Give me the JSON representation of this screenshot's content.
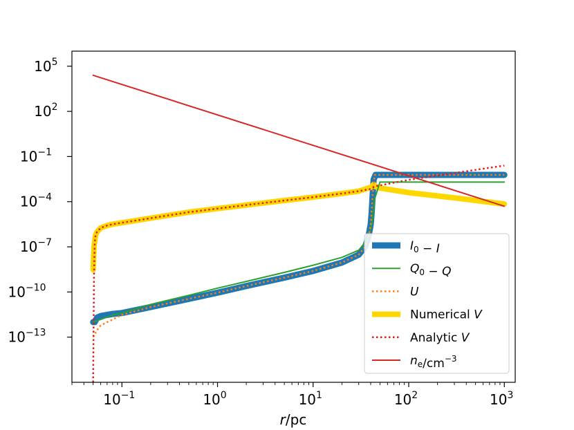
{
  "chart_data": {
    "type": "line",
    "title": "",
    "xscale": "log",
    "yscale": "log",
    "xlabel": {
      "italic": "r",
      "rest": "/pc"
    },
    "ylabel": "",
    "xlim": [
      0.03,
      1300
    ],
    "ylim": [
      1e-16,
      1000000.0
    ],
    "grid": false,
    "legend_position": "lower-right",
    "x_ticks": [
      {
        "value": 0.1,
        "base": "10",
        "exp": "−1"
      },
      {
        "value": 1,
        "base": "10",
        "exp": "0"
      },
      {
        "value": 10,
        "base": "10",
        "exp": "1"
      },
      {
        "value": 100,
        "base": "10",
        "exp": "2"
      },
      {
        "value": 1000,
        "base": "10",
        "exp": "3"
      }
    ],
    "y_ticks": [
      {
        "value": 100000.0,
        "base": "10",
        "exp": "5"
      },
      {
        "value": 100.0,
        "base": "10",
        "exp": "2"
      },
      {
        "value": 0.1,
        "base": "10",
        "exp": "−1"
      },
      {
        "value": 0.0001,
        "base": "10",
        "exp": "−4"
      },
      {
        "value": 1e-07,
        "base": "10",
        "exp": "−7"
      },
      {
        "value": 1e-10,
        "base": "10",
        "exp": "−10"
      },
      {
        "value": 1e-13,
        "base": "10",
        "exp": "−13"
      }
    ],
    "series": [
      {
        "name": "I0 − I",
        "label_main": "I",
        "label_sub": "0",
        "label_tail": " − I",
        "color": "#1f77b4",
        "style": "solid",
        "width": 9,
        "x": [
          0.05,
          0.052,
          0.055,
          0.06,
          0.08,
          0.1,
          0.2,
          0.5,
          1,
          2,
          5,
          10,
          20,
          30,
          35,
          38,
          40,
          41,
          42,
          43,
          45,
          50,
          100,
          300,
          1000
        ],
        "y": [
          1e-12,
          1e-12,
          2e-12,
          2.5e-12,
          3.5e-12,
          4e-12,
          1e-11,
          3.5e-11,
          9e-11,
          2.5e-10,
          9e-10,
          2.5e-09,
          9e-09,
          3e-08,
          1e-07,
          5e-07,
          3e-06,
          2e-05,
          0.0003,
          0.003,
          0.006,
          0.006,
          0.006,
          0.006,
          0.006
        ]
      },
      {
        "name": "Q0 − Q",
        "label_main": "Q",
        "label_sub": "0",
        "label_tail": " − Q",
        "color": "#2ca02c",
        "style": "solid",
        "width": 2,
        "x": [
          0.05,
          0.06,
          0.08,
          0.1,
          0.2,
          0.5,
          1,
          2,
          5,
          10,
          20,
          30,
          35,
          38,
          40,
          42,
          44,
          50,
          100,
          300,
          1000
        ],
        "y": [
          1e-12,
          1.5e-12,
          3e-12,
          4e-12,
          1.5e-11,
          6e-11,
          1.8e-10,
          5e-10,
          2e-09,
          6e-09,
          2e-08,
          6e-08,
          2e-07,
          5e-07,
          1.5e-06,
          8e-06,
          0.00015,
          0.002,
          0.002,
          0.002,
          0.002
        ]
      },
      {
        "name": "U",
        "label_main": "U",
        "label_sub": "",
        "label_tail": "",
        "color": "#ff7f0e",
        "style": "dotted",
        "width": 2.5,
        "x": [
          0.05,
          0.055,
          0.06,
          0.08,
          0.1,
          0.2,
          0.5,
          1,
          2,
          5,
          10,
          20,
          30,
          35,
          38,
          40,
          42,
          44,
          50,
          100,
          300,
          1000
        ],
        "y": [
          1e-13,
          3e-13,
          6e-13,
          1.5e-12,
          3e-12,
          1e-11,
          3.5e-11,
          9e-11,
          2.5e-10,
          9e-10,
          2.5e-09,
          9e-09,
          3e-08,
          1e-07,
          5e-07,
          3e-06,
          0.0003,
          0.006,
          0.006,
          0.006,
          0.006,
          0.006
        ]
      },
      {
        "name": "Numerical V",
        "label_main": "",
        "label_sub": "",
        "label_tail": "Numerical V",
        "color": "#ffd700",
        "style": "solid",
        "width": 8,
        "x": [
          0.05,
          0.051,
          0.053,
          0.055,
          0.06,
          0.07,
          0.08,
          0.1,
          0.2,
          0.5,
          1,
          2,
          5,
          10,
          20,
          30,
          40,
          43,
          45,
          50,
          100,
          300,
          1000
        ],
        "y": [
          3e-09,
          1e-07,
          6e-07,
          1e-06,
          1.8e-06,
          2.6e-06,
          3.2e-06,
          4e-06,
          8e-06,
          2e-05,
          3.5e-05,
          6e-05,
          0.00012,
          0.0002,
          0.00035,
          0.0005,
          0.0009,
          0.0014,
          0.001,
          0.0008,
          0.0004,
          0.00018,
          7e-05
        ]
      },
      {
        "name": "Analytic V",
        "label_main": "",
        "label_sub": "",
        "label_tail": "Analytic V",
        "color": "#e41a1c",
        "style": "dotted",
        "width": 2.5,
        "x": [
          0.05,
          0.051,
          0.052,
          0.053,
          0.055,
          0.06,
          0.07,
          0.08,
          0.1,
          0.2,
          0.5,
          1,
          2,
          5,
          10,
          20,
          30,
          40,
          45,
          50,
          100,
          300,
          1000
        ],
        "y": [
          1e-16,
          1e-09,
          2e-07,
          6e-07,
          1e-06,
          1.8e-06,
          2.6e-06,
          3.2e-06,
          4e-06,
          8e-06,
          2e-05,
          3.5e-05,
          6e-05,
          0.00012,
          0.0002,
          0.00035,
          0.0005,
          0.0007,
          0.0011,
          0.0012,
          0.0028,
          0.008,
          0.025
        ]
      },
      {
        "name": "ne/cm−3",
        "label_main": "n",
        "label_sub": "e",
        "label_tail": "/cm",
        "label_sup": "−3",
        "color": "#d62728",
        "style": "solid",
        "width": 2,
        "x": [
          0.05,
          1000
        ],
        "y": [
          25000.0,
          5e-05
        ]
      }
    ]
  }
}
